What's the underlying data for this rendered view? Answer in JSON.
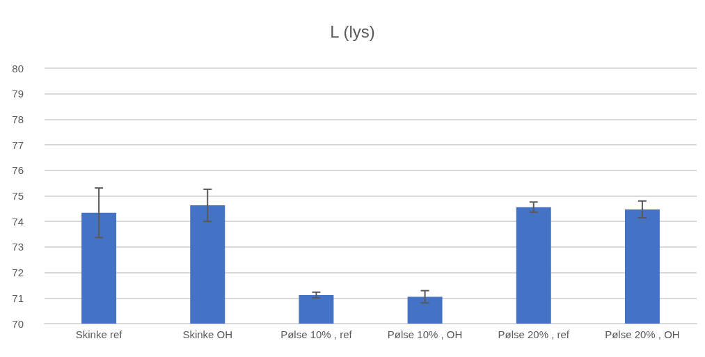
{
  "chart_data": {
    "type": "bar",
    "title": "L (lys)",
    "categories": [
      "Skinke ref",
      "Skinke OH",
      "Pølse 10% , ref",
      "Pølse 10% , OH",
      "Pølse 20% , ref",
      "Pølse 20% , OH"
    ],
    "values": [
      74.34,
      74.63,
      71.12,
      71.05,
      74.56,
      74.47
    ],
    "errors": [
      0.97,
      0.63,
      0.11,
      0.24,
      0.2,
      0.33
    ],
    "color": "#4472c4",
    "ylim": [
      70,
      80
    ],
    "yticks": [
      70,
      71,
      72,
      73,
      74,
      75,
      76,
      77,
      78,
      79,
      80
    ],
    "grid": true
  }
}
